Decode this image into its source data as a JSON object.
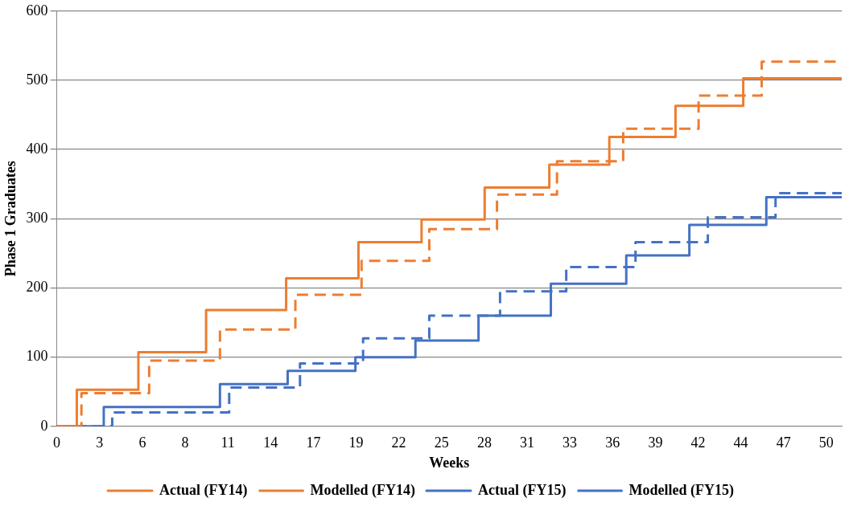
{
  "chart_data": {
    "type": "step",
    "xlabel": "Weeks",
    "ylabel": "Phase 1 Graduates",
    "xlim": [
      0,
      51
    ],
    "ylim": [
      0,
      600
    ],
    "yticks": [
      0,
      100,
      200,
      300,
      400,
      500,
      600
    ],
    "xticks": [
      {
        "value": 0,
        "label": "0"
      },
      {
        "value": 2.78,
        "label": "3"
      },
      {
        "value": 5.56,
        "label": "6"
      },
      {
        "value": 8.33,
        "label": "8"
      },
      {
        "value": 11.11,
        "label": "11"
      },
      {
        "value": 13.89,
        "label": "14"
      },
      {
        "value": 16.67,
        "label": "17"
      },
      {
        "value": 19.44,
        "label": "19"
      },
      {
        "value": 22.22,
        "label": "22"
      },
      {
        "value": 25,
        "label": "25"
      },
      {
        "value": 27.78,
        "label": "28"
      },
      {
        "value": 30.56,
        "label": "31"
      },
      {
        "value": 33.33,
        "label": "33"
      },
      {
        "value": 36.11,
        "label": "36"
      },
      {
        "value": 38.89,
        "label": "39"
      },
      {
        "value": 41.67,
        "label": "42"
      },
      {
        "value": 44.44,
        "label": "44"
      },
      {
        "value": 47.22,
        "label": "47"
      },
      {
        "value": 50,
        "label": "50"
      }
    ],
    "grid": "y",
    "legend": "bottom",
    "series": [
      {
        "name": "Actual (FY14)",
        "color": "#ed7d31",
        "line_style": "solid",
        "x": [
          0,
          1.3,
          5.3,
          9.7,
          14.9,
          19.6,
          23.7,
          27.8,
          32.0,
          35.9,
          40.2,
          44.6,
          51
        ],
        "values": [
          0,
          53,
          107,
          168,
          214,
          266,
          299,
          345,
          378,
          418,
          463,
          503,
          503
        ]
      },
      {
        "name": "Modelled (FY14)",
        "color": "#ed7d31",
        "line_style": "dashed",
        "x": [
          0,
          1.6,
          6.0,
          10.6,
          15.5,
          19.8,
          24.2,
          28.6,
          32.5,
          36.8,
          41.7,
          45.8,
          51
        ],
        "values": [
          0,
          48,
          95,
          140,
          190,
          239,
          285,
          335,
          383,
          430,
          478,
          527,
          527
        ]
      },
      {
        "name": "Actual (FY15)",
        "color": "#4472c4",
        "line_style": "solid",
        "x": [
          0,
          3.05,
          10.6,
          15.0,
          19.4,
          23.3,
          27.4,
          32.1,
          37.0,
          41.1,
          46.1,
          51
        ],
        "values": [
          0,
          28,
          61,
          80,
          100,
          124,
          160,
          206,
          247,
          291,
          331,
          331
        ]
      },
      {
        "name": "Modelled (FY15)",
        "color": "#4472c4",
        "line_style": "dashed",
        "x": [
          0,
          3.6,
          11.2,
          15.8,
          19.9,
          24.2,
          28.8,
          33.1,
          37.6,
          42.3,
          46.7,
          51
        ],
        "values": [
          0,
          20,
          56,
          91,
          127,
          160,
          195,
          230,
          266,
          302,
          337,
          337
        ]
      }
    ]
  }
}
